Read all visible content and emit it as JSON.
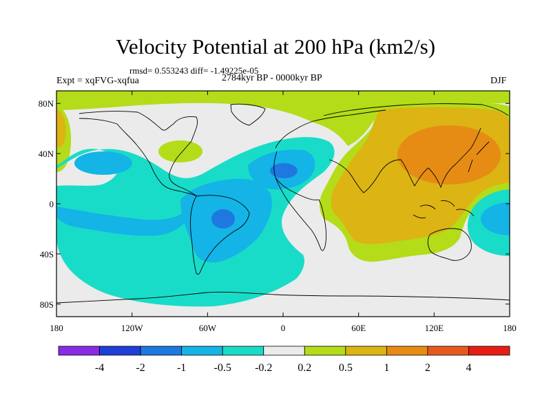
{
  "title": "Velocity Potential at 200 hPa (km2/s)",
  "stats": "rmsd= 0.553243 diff= -1.49225e-05",
  "experiment": "Expt = xqFVG-xqfua",
  "period": "2784kyr BP - 0000kyr BP",
  "season": "DJF",
  "map": {
    "x_ticks": [
      {
        "lon": -180,
        "label": "180"
      },
      {
        "lon": -120,
        "label": "120W"
      },
      {
        "lon": -60,
        "label": "60W"
      },
      {
        "lon": 0,
        "label": "0"
      },
      {
        "lon": 60,
        "label": "60E"
      },
      {
        "lon": 120,
        "label": "120E"
      },
      {
        "lon": 180,
        "label": "180"
      }
    ],
    "y_ticks": [
      {
        "lat": 80,
        "label": "80N"
      },
      {
        "lat": 40,
        "label": "40N"
      },
      {
        "lat": 0,
        "label": "0"
      },
      {
        "lat": -40,
        "label": "40S"
      },
      {
        "lat": -80,
        "label": "80S"
      }
    ],
    "lon_range": [
      -180,
      180
    ],
    "lat_range": [
      -90,
      90
    ]
  },
  "colorbar": {
    "colors": [
      "#8a2be2",
      "#1f3fd6",
      "#1e78e0",
      "#14b4e6",
      "#19dcc8",
      "#ebebeb",
      "#b4dc19",
      "#dcb414",
      "#e68c14",
      "#e65a1e",
      "#e61e14"
    ],
    "labels": [
      "-4",
      "-2",
      "-1",
      "-0.5",
      "-0.2",
      "0.2",
      "0.5",
      "1",
      "2",
      "4"
    ]
  }
}
